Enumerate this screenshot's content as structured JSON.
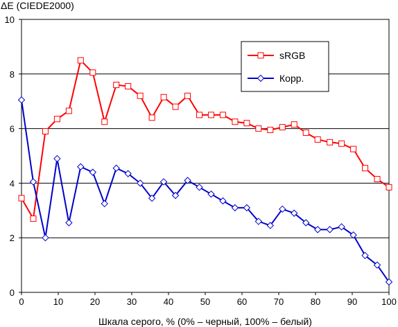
{
  "chart_data": {
    "type": "line",
    "title": "",
    "ylabel": "ΔE (CIEDE2000)",
    "xlabel": "Шкала серого, % (0% – черный, 100% – белый)",
    "xlim": [
      0,
      100
    ],
    "ylim": [
      0,
      10
    ],
    "x_ticks": [
      "0",
      "10",
      "20",
      "30",
      "40",
      "50",
      "60",
      "70",
      "80",
      "90",
      "100"
    ],
    "y_ticks": [
      "0",
      "2",
      "4",
      "6",
      "8",
      "10"
    ],
    "grid": "horizontal",
    "legend_position": "top-right",
    "series": [
      {
        "name": "sRGB",
        "color": "#ff0000",
        "marker": "square",
        "x": [
          0,
          3.2,
          6.5,
          9.7,
          12.9,
          16.1,
          19.4,
          22.6,
          25.8,
          29.0,
          32.3,
          35.5,
          38.7,
          41.9,
          45.2,
          48.4,
          51.6,
          54.8,
          58.1,
          61.3,
          64.5,
          67.7,
          71.0,
          74.2,
          77.4,
          80.6,
          83.9,
          87.1,
          90.3,
          93.5,
          96.8,
          100
        ],
        "values": [
          3.45,
          2.7,
          5.9,
          6.35,
          6.65,
          8.5,
          8.05,
          6.25,
          7.6,
          7.55,
          7.2,
          6.4,
          7.15,
          6.8,
          7.2,
          6.5,
          6.5,
          6.5,
          6.25,
          6.2,
          6.0,
          5.95,
          6.05,
          6.15,
          5.85,
          5.6,
          5.5,
          5.45,
          5.25,
          4.55,
          4.15,
          3.85
        ]
      },
      {
        "name": "Корр.",
        "color": "#0000cc",
        "marker": "diamond",
        "x": [
          0,
          3.2,
          6.5,
          9.7,
          12.9,
          16.1,
          19.4,
          22.6,
          25.8,
          29.0,
          32.3,
          35.5,
          38.7,
          41.9,
          45.2,
          48.4,
          51.6,
          54.8,
          58.1,
          61.3,
          64.5,
          67.7,
          71.0,
          74.2,
          77.4,
          80.6,
          83.9,
          87.1,
          90.3,
          93.5,
          96.8,
          100
        ],
        "values": [
          7.05,
          4.05,
          2.0,
          4.9,
          2.55,
          4.6,
          4.4,
          3.25,
          4.55,
          4.35,
          4.0,
          3.45,
          4.05,
          3.55,
          4.1,
          3.85,
          3.6,
          3.35,
          3.1,
          3.1,
          2.6,
          2.45,
          3.05,
          2.9,
          2.55,
          2.3,
          2.3,
          2.4,
          2.1,
          1.35,
          1.0,
          0.38
        ]
      }
    ]
  }
}
